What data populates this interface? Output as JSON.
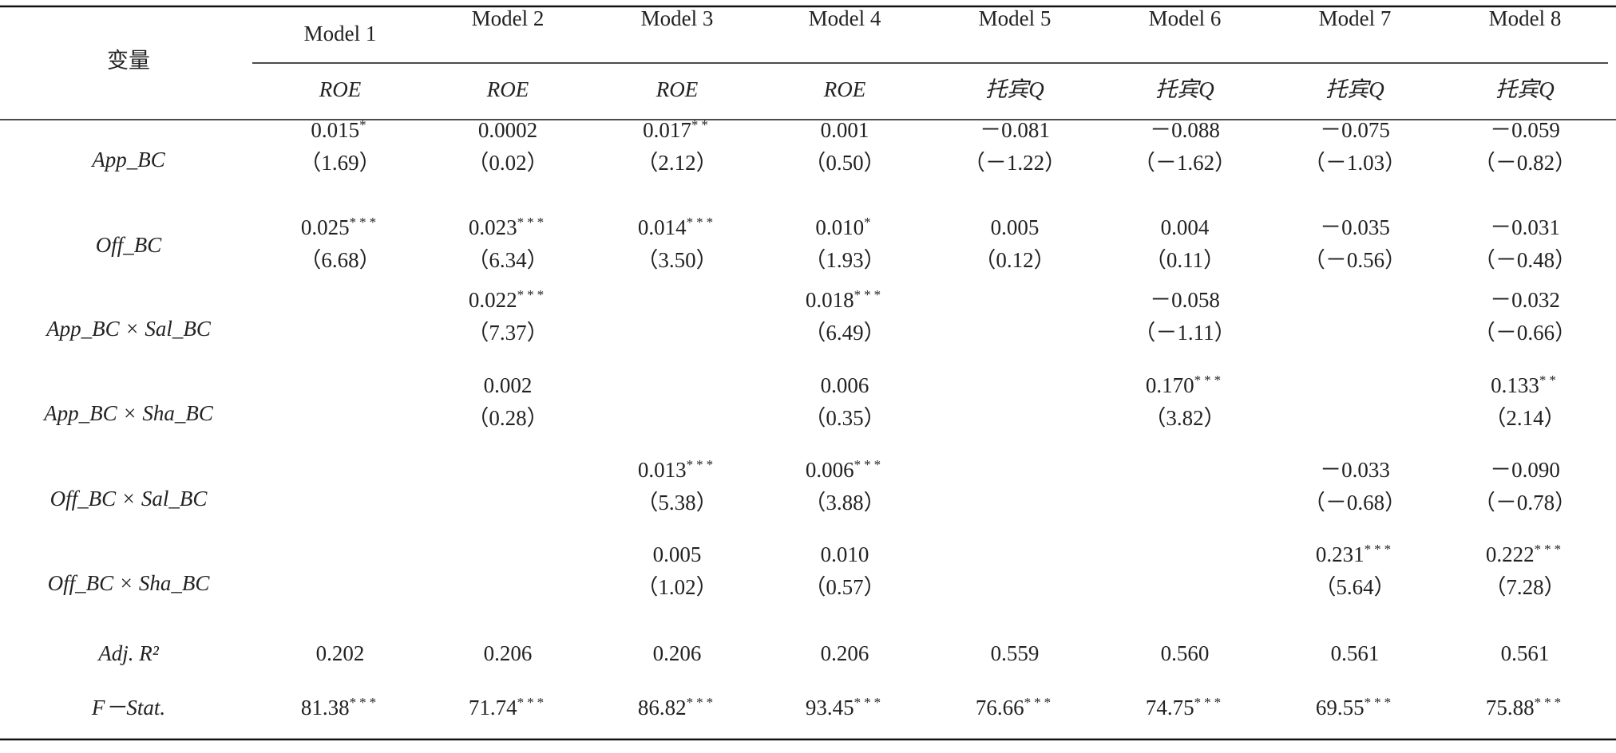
{
  "header": {
    "variable": "变量",
    "models": [
      "Model 1",
      "Model 2",
      "Model 3",
      "Model 4",
      "Model 5",
      "Model 6",
      "Model 7",
      "Model 8"
    ],
    "dependent": [
      "ROE",
      "ROE",
      "ROE",
      "ROE",
      "托宾Q",
      "托宾Q",
      "托宾Q",
      "托宾Q"
    ]
  },
  "rows": [
    {
      "label": "App_BC",
      "cells": [
        {
          "coef": "0.015",
          "stars": "*",
          "t": "（1.69）"
        },
        {
          "coef": "0.0002",
          "t": "（0.02）"
        },
        {
          "coef": "0.017",
          "stars": "**",
          "t": "（2.12）"
        },
        {
          "coef": "0.001",
          "t": "（0.50）"
        },
        {
          "coef": "－0.081",
          "t": "（－1.22）"
        },
        {
          "coef": "－0.088",
          "t": "（－1.62）"
        },
        {
          "coef": "－0.075",
          "t": "（－1.03）"
        },
        {
          "coef": "－0.059",
          "t": "（－0.82）"
        }
      ]
    },
    {
      "label": "Off_BC",
      "cells": [
        {
          "coef": "0.025",
          "stars": "***",
          "t": "（6.68）"
        },
        {
          "coef": "0.023",
          "stars": "***",
          "t": "（6.34）"
        },
        {
          "coef": "0.014",
          "stars": "***",
          "t": "（3.50）"
        },
        {
          "coef": "0.010",
          "stars": "*",
          "t": "（1.93）"
        },
        {
          "coef": "0.005",
          "t": "（0.12）"
        },
        {
          "coef": "0.004",
          "t": "（0.11）"
        },
        {
          "coef": "－0.035",
          "t": "（－0.56）"
        },
        {
          "coef": "－0.031",
          "t": "（－0.48）"
        }
      ]
    },
    {
      "label": "App_BC × Sal_BC",
      "cells": [
        null,
        {
          "coef": "0.022",
          "stars": "***",
          "t": "（7.37）"
        },
        null,
        {
          "coef": "0.018",
          "stars": "***",
          "t": "（6.49）"
        },
        null,
        {
          "coef": "－0.058",
          "t": "（－1.11）"
        },
        null,
        {
          "coef": "－0.032",
          "t": "（－0.66）"
        }
      ]
    },
    {
      "label": "App_BC × Sha_BC",
      "cells": [
        null,
        {
          "coef": "0.002",
          "t": "（0.28）"
        },
        null,
        {
          "coef": "0.006",
          "t": "（0.35）"
        },
        null,
        {
          "coef": "0.170",
          "stars": "***",
          "t": "（3.82）"
        },
        null,
        {
          "coef": "0.133",
          "stars": "**",
          "t": "（2.14）"
        }
      ]
    },
    {
      "label": "Off_BC × Sal_BC",
      "cells": [
        null,
        null,
        {
          "coef": "0.013",
          "stars": "***",
          "t": "（5.38）"
        },
        {
          "coef": "0.006",
          "stars": "***",
          "t": "（3.88）"
        },
        null,
        null,
        {
          "coef": "－0.033",
          "t": "（－0.68）"
        },
        {
          "coef": "－0.090",
          "t": "（－0.78）"
        }
      ]
    },
    {
      "label": "Off_BC × Sha_BC",
      "cells": [
        null,
        null,
        {
          "coef": "0.005",
          "t": "（1.02）"
        },
        {
          "coef": "0.010",
          "t": "（0.57）"
        },
        null,
        null,
        {
          "coef": "0.231",
          "stars": "***",
          "t": "（5.64）"
        },
        {
          "coef": "0.222",
          "stars": "***",
          "t": "（7.28）"
        }
      ]
    },
    {
      "label": "Adj. R²",
      "cells": [
        {
          "coef": "0.202"
        },
        {
          "coef": "0.206"
        },
        {
          "coef": "0.206"
        },
        {
          "coef": "0.206"
        },
        {
          "coef": "0.559"
        },
        {
          "coef": "0.560"
        },
        {
          "coef": "0.561"
        },
        {
          "coef": "0.561"
        }
      ]
    },
    {
      "label": "F－Stat.",
      "cells": [
        {
          "coef": "81.38",
          "stars": "***"
        },
        {
          "coef": "71.74",
          "stars": "***"
        },
        {
          "coef": "86.82",
          "stars": "***"
        },
        {
          "coef": "93.45",
          "stars": "***"
        },
        {
          "coef": "76.66",
          "stars": "***"
        },
        {
          "coef": "74.75",
          "stars": "***"
        },
        {
          "coef": "69.55",
          "stars": "***"
        },
        {
          "coef": "75.88",
          "stars": "***"
        }
      ]
    }
  ]
}
